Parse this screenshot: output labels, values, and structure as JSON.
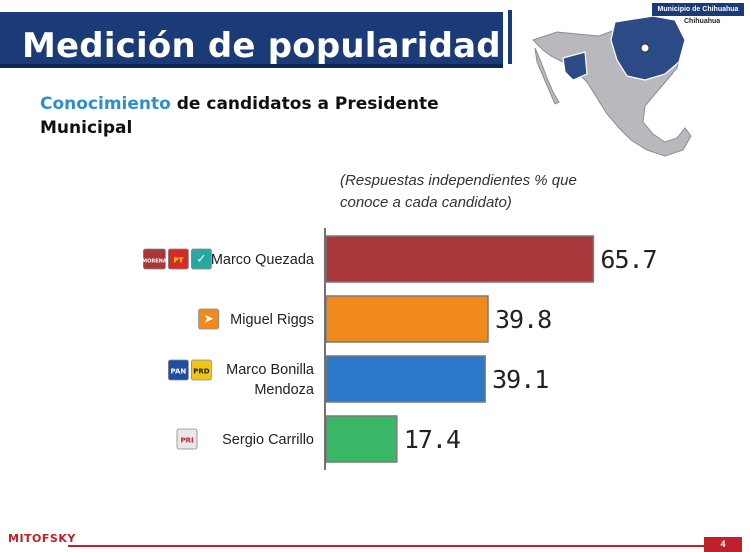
{
  "header": {
    "title": "Medición de popularidad"
  },
  "map": {
    "label": "Municipio de Chihuahua",
    "sublabel": "Chihuahua"
  },
  "subtitle": {
    "highlight": "Conocimiento",
    "rest": " de candidatos a Presidente Municipal"
  },
  "note": "(Respuestas independientes % que conoce a cada candidato)",
  "colors": {
    "header": "#1a3a78",
    "accent": "#2e8fc9",
    "footer": "#c0202a"
  },
  "chart_data": {
    "type": "bar",
    "orientation": "horizontal",
    "title": "Conocimiento de candidatos a Presidente Municipal",
    "categories": [
      "Marco Quezada",
      "Miguel Riggs",
      "Marco Bonilla Mendoza",
      "Sergio Carrillo"
    ],
    "label_lines": [
      [
        "Marco Quezada"
      ],
      [
        "Miguel Riggs"
      ],
      [
        "Marco Bonilla",
        "Mendoza"
      ],
      [
        "Sergio Carrillo"
      ]
    ],
    "values": [
      65.7,
      39.8,
      39.1,
      17.4
    ],
    "value_labels": [
      "65.7",
      "39.8",
      "39.1",
      "17.4"
    ],
    "colors": [
      "#a8363a",
      "#f08a1c",
      "#2b78c8",
      "#3ab868"
    ],
    "party_logos": [
      [
        {
          "name": "morena-logo",
          "text": "MORENA",
          "bg": "#a8363a",
          "fg": "#ffffff"
        },
        {
          "name": "pt-logo",
          "text": "PT",
          "bg": "#d42a2a",
          "fg": "#ffde00"
        },
        {
          "name": "pes-logo",
          "text": "✓",
          "bg": "#2aa7a0",
          "fg": "#ffffff"
        }
      ],
      [
        {
          "name": "mc-logo",
          "text": "➤",
          "bg": "#f08a1c",
          "fg": "#ffffff"
        }
      ],
      [
        {
          "name": "pan-logo",
          "text": "PAN",
          "bg": "#1d4fa0",
          "fg": "#ffffff"
        },
        {
          "name": "prd-logo",
          "text": "PRD",
          "bg": "#f0c419",
          "fg": "#222222"
        }
      ],
      [
        {
          "name": "pri-logo",
          "text": "PRI",
          "bg": "#e8e8e8",
          "fg": "#c0202a"
        }
      ]
    ],
    "xlim": [
      0,
      100
    ],
    "page_number": "4",
    "brand": "MITOFSKY"
  }
}
